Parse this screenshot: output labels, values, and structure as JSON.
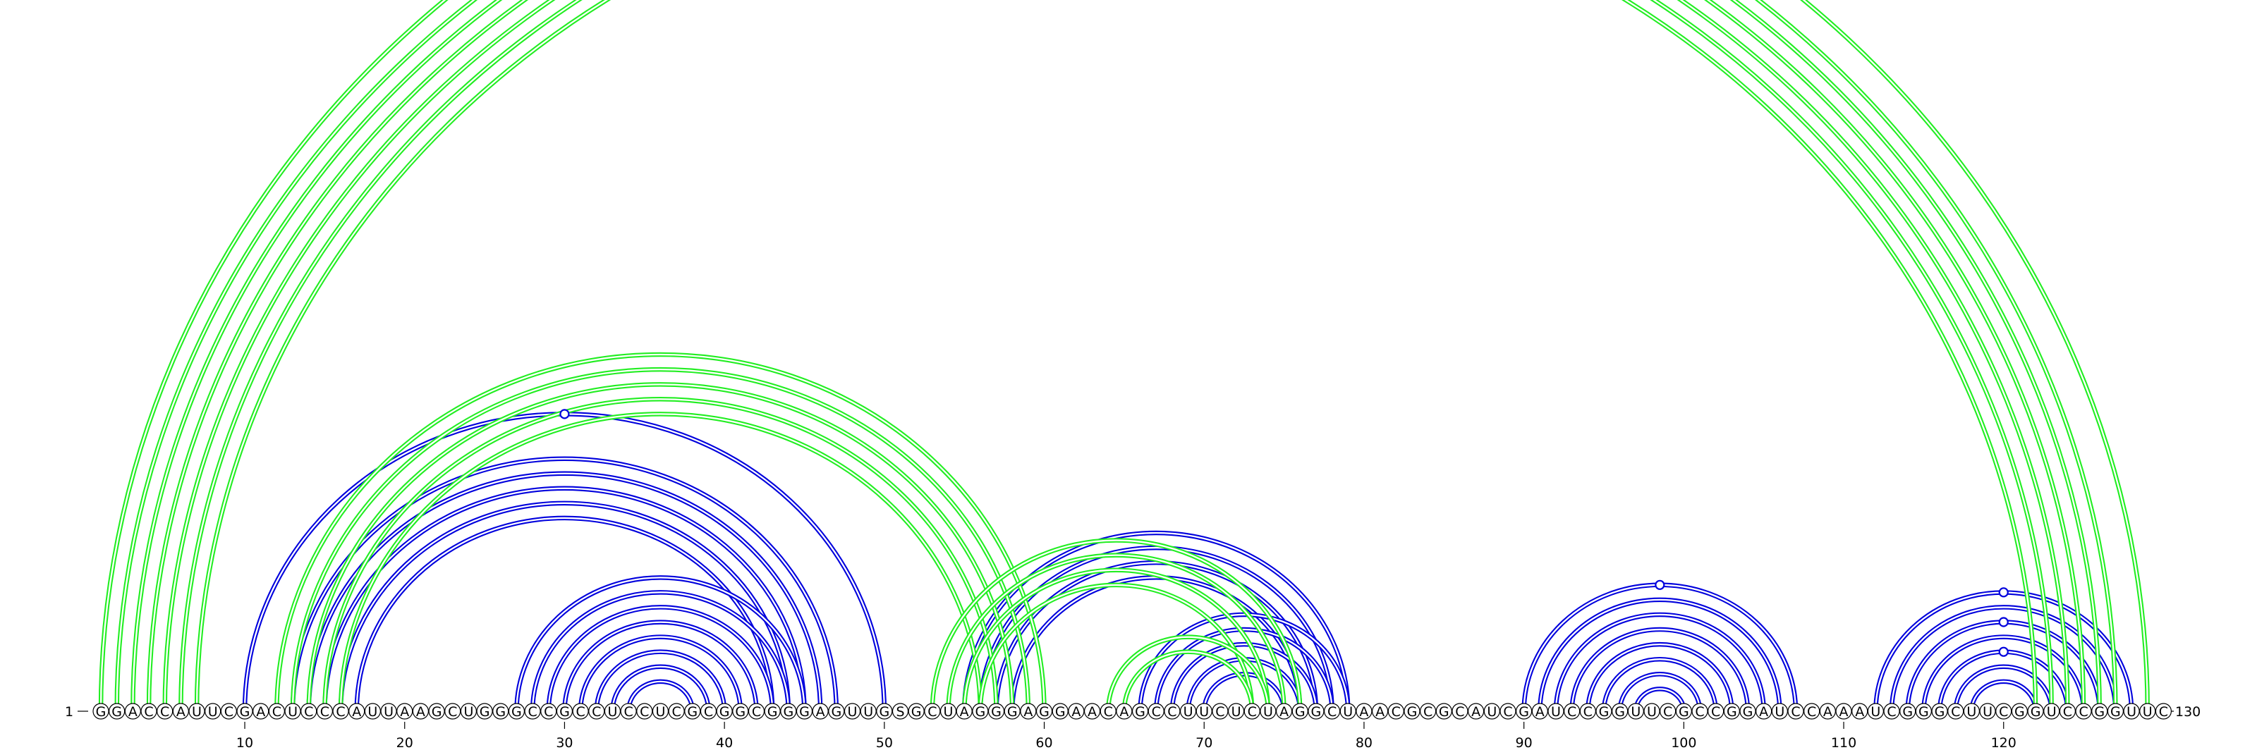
{
  "sequence": "GGACCAUUCGACUCCCAUUAAGCUGGGCCGCCUCCUCGCGGCGGGAGUUGSGCUAGGGAGGAACAGCCUUCUCUAGGCUAACGCGCAUCGAUCCGGUUCGCCGGAUCCAAAUCGGGCUUCGGUCCGGUUC",
  "start_label": "1",
  "end_label": "130",
  "ticks": [
    10,
    20,
    30,
    40,
    50,
    60,
    70,
    80,
    90,
    100,
    110,
    120
  ],
  "colors": {
    "structure_blue": "#0000dd",
    "structure_green": "#22ee22",
    "nucleotide_outline": "#000000",
    "background": "#ffffff"
  },
  "structures": [
    {
      "color": "#0000dd",
      "side": "top",
      "pairs": [
        [
          10,
          50
        ],
        [
          13,
          47
        ],
        [
          14,
          46
        ],
        [
          15,
          45
        ],
        [
          16,
          44
        ],
        [
          17,
          43
        ],
        [
          27,
          45
        ],
        [
          28,
          44
        ],
        [
          29,
          43
        ],
        [
          30,
          42
        ],
        [
          31,
          41
        ],
        [
          32,
          40
        ],
        [
          33,
          39
        ],
        [
          34,
          38
        ],
        [
          55,
          79
        ],
        [
          56,
          78
        ],
        [
          57,
          77
        ],
        [
          58,
          76
        ],
        [
          66,
          79
        ],
        [
          67,
          78
        ],
        [
          68,
          77
        ],
        [
          69,
          76
        ],
        [
          70,
          75
        ],
        [
          90,
          107
        ],
        [
          91,
          106
        ],
        [
          92,
          105
        ],
        [
          93,
          104
        ],
        [
          94,
          103
        ],
        [
          95,
          102
        ],
        [
          96,
          101
        ],
        [
          97,
          100
        ],
        [
          112,
          128
        ],
        [
          113,
          127
        ],
        [
          114,
          126
        ],
        [
          115,
          125
        ],
        [
          116,
          124
        ],
        [
          117,
          123
        ],
        [
          118,
          122
        ]
      ],
      "markers": [
        30,
        99,
        120,
        120,
        120
      ]
    },
    {
      "color": "#22ee22",
      "side": "top",
      "pairs": [
        [
          1,
          129
        ],
        [
          2,
          127
        ],
        [
          3,
          126
        ],
        [
          4,
          125
        ],
        [
          5,
          124
        ],
        [
          6,
          123
        ],
        [
          7,
          122
        ],
        [
          12,
          60
        ],
        [
          13,
          59
        ],
        [
          14,
          58
        ],
        [
          15,
          57
        ],
        [
          16,
          56
        ],
        [
          53,
          76
        ],
        [
          54,
          75
        ],
        [
          55,
          74
        ],
        [
          56,
          73
        ],
        [
          64,
          74
        ],
        [
          65,
          73
        ]
      ],
      "markers": [
        66
      ]
    }
  ]
}
